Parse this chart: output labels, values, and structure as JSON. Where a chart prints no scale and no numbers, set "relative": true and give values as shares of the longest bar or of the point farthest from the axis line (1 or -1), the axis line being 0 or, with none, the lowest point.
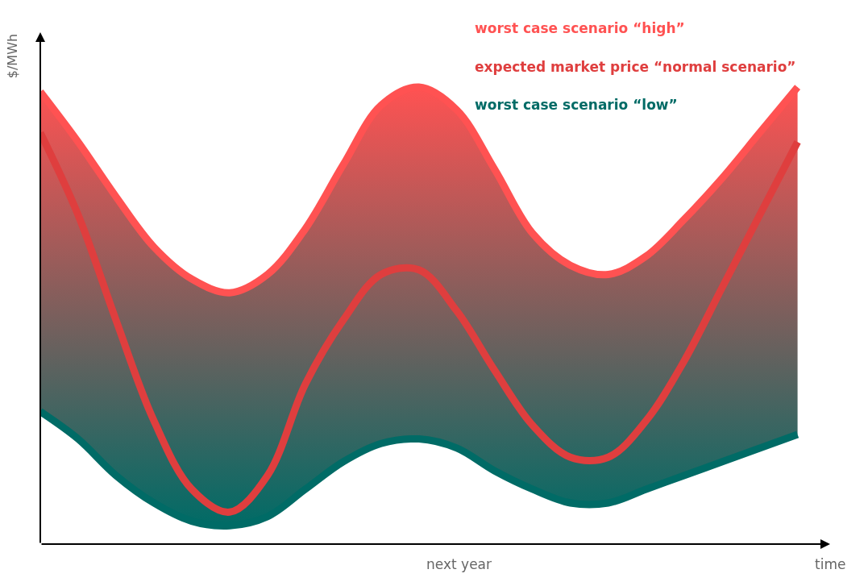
{
  "chart_data": {
    "type": "line",
    "relative": true,
    "xlabel": "time",
    "ylabel": "$/MWh",
    "legend": "top right",
    "marker": "none",
    "line_style": "solid",
    "annotations": [
      "next year"
    ],
    "categories": [
      null,
      null,
      null,
      null,
      null,
      null,
      null,
      null,
      null,
      null,
      null,
      null,
      null,
      null,
      null,
      null,
      null,
      null,
      null,
      null,
      null
    ],
    "series": [
      {
        "name": "worst case scenario “high”",
        "color": "#ff5252",
        "values": [
          0.99,
          0.88,
          0.76,
          0.65,
          0.58,
          0.55,
          0.59,
          0.69,
          0.83,
          0.96,
          1.0,
          0.95,
          0.82,
          0.68,
          0.61,
          0.59,
          0.63,
          0.71,
          0.8,
          0.9,
          1.0
        ]
      },
      {
        "name": "expected market price “normal scenario”",
        "color": "#df3e3e",
        "values": [
          0.9,
          0.72,
          0.49,
          0.27,
          0.12,
          0.07,
          0.15,
          0.35,
          0.49,
          0.59,
          0.6,
          0.51,
          0.38,
          0.26,
          0.19,
          0.19,
          0.27,
          0.4,
          0.56,
          0.72,
          0.88
        ],
        "lower": [
          0.29,
          0.23,
          0.15,
          0.09,
          0.05,
          0.04,
          0.06,
          0.12,
          0.18,
          0.22,
          0.23,
          0.21,
          0.16,
          0.12,
          0.09,
          0.09,
          0.12,
          0.15,
          0.18,
          0.21,
          0.24
        ],
        "upper": [
          0.99,
          0.88,
          0.76,
          0.65,
          0.58,
          0.55,
          0.59,
          0.69,
          0.83,
          0.96,
          1.0,
          0.95,
          0.82,
          0.68,
          0.61,
          0.59,
          0.63,
          0.71,
          0.8,
          0.9,
          1.0
        ]
      },
      {
        "name": "worst case scenario “low”",
        "color": "#006b66",
        "values": [
          0.29,
          0.23,
          0.15,
          0.09,
          0.05,
          0.04,
          0.06,
          0.12,
          0.18,
          0.22,
          0.23,
          0.21,
          0.16,
          0.12,
          0.09,
          0.09,
          0.12,
          0.15,
          0.18,
          0.21,
          0.24
        ]
      }
    ]
  }
}
